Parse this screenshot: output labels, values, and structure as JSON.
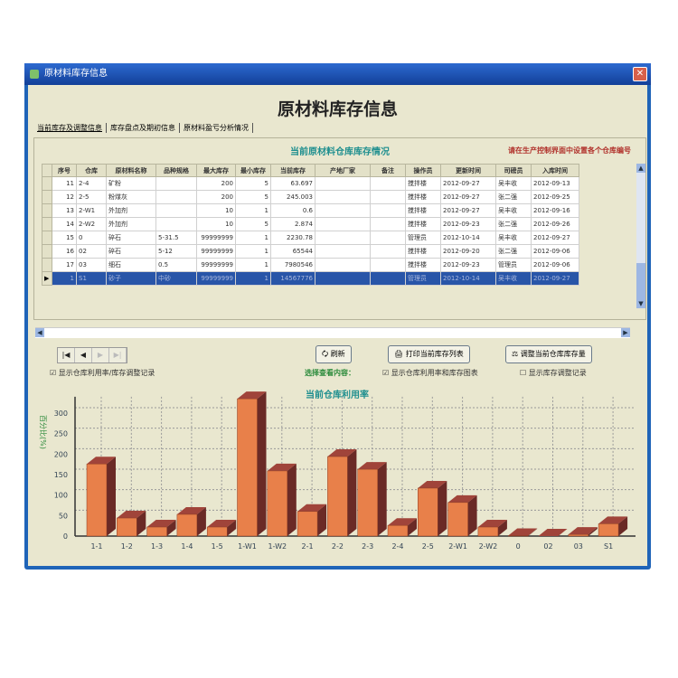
{
  "window": {
    "title": "原材料库存信息",
    "close": "✕"
  },
  "page": {
    "heading": "原材料库存信息"
  },
  "tabs": [
    {
      "label": "当前库存及调整信息",
      "active": true
    },
    {
      "label": "库存盘点及期初信息"
    },
    {
      "label": "原材料盈亏分析情况"
    }
  ],
  "grid": {
    "title": "当前原材料仓库库存情况",
    "note": "请在生产控制界面中设置各个仓库编号",
    "columns": [
      "序号",
      "仓库",
      "原材料名称",
      "品种规格",
      "最大库存",
      "最小库存",
      "当前库存",
      "产地厂家",
      "备注",
      "操作员",
      "更新时间",
      "司磅员",
      "入库时间"
    ],
    "rows": [
      [
        "11",
        "2-4",
        "矿粉",
        "",
        "200",
        "5",
        "63.697",
        "",
        "",
        "搅拌楼",
        "2012-09-27",
        "吴丰收",
        "2012-09-13"
      ],
      [
        "12",
        "2-5",
        "粉煤灰",
        "",
        "200",
        "5",
        "245.003",
        "",
        "",
        "搅拌楼",
        "2012-09-27",
        "张二强",
        "2012-09-25"
      ],
      [
        "13",
        "2-W1",
        "外加剂",
        "",
        "10",
        "1",
        "0.6",
        "",
        "",
        "搅拌楼",
        "2012-09-27",
        "吴丰收",
        "2012-09-16"
      ],
      [
        "14",
        "2-W2",
        "外加剂",
        "",
        "10",
        "5",
        "2.874",
        "",
        "",
        "搅拌楼",
        "2012-09-23",
        "张二强",
        "2012-09-26"
      ],
      [
        "15",
        "0",
        "碎石",
        "5-31.5",
        "99999999",
        "1",
        "2230.78",
        "",
        "",
        "管理员",
        "2012-10-14",
        "吴丰收",
        "2012-09-27"
      ],
      [
        "16",
        "02",
        "碎石",
        "5-12",
        "99999999",
        "1",
        "65544",
        "",
        "",
        "搅拌楼",
        "2012-09-20",
        "张二强",
        "2012-09-06"
      ],
      [
        "17",
        "03",
        "细石",
        "0.5",
        "99999999",
        "1",
        "7980546",
        "",
        "",
        "搅拌楼",
        "2012-09-23",
        "管理员",
        "2012-09-06"
      ],
      [
        "1",
        "S1",
        "砂子",
        "中砂",
        "99999999",
        "1",
        "14567776",
        "",
        "",
        "管理员",
        "2012-10-14",
        "吴丰收",
        "2012-09-27"
      ]
    ],
    "selected_row": 7
  },
  "nav": {
    "first": "|◀",
    "prev": "◀",
    "next": "▶",
    "last": "▶|"
  },
  "buttons": {
    "refresh": "刷新",
    "print": "打印当前库存列表",
    "adjust": "调整当前仓库库存量"
  },
  "options": {
    "show_records": "显示仓库利用率/库存调整记录",
    "show_records_checked": true,
    "choose_label": "选择查看内容：",
    "show_chart": "显示仓库利用率和库存图表",
    "show_chart_checked": true,
    "show_adjust": "显示库存调整记录",
    "show_adjust_checked": false
  },
  "chart_data": {
    "type": "bar",
    "title": "当前仓库利用率",
    "ylabel": "百分比(%)",
    "ylim": [
      0,
      350
    ],
    "yticks": [
      0,
      50,
      100,
      150,
      200,
      250,
      300
    ],
    "grid": true,
    "categories": [
      "1-1",
      "1-2",
      "1-3",
      "1-4",
      "1-5",
      "1-W1",
      "1-W2",
      "2-1",
      "2-2",
      "2-3",
      "2-4",
      "2-5",
      "2-W1",
      "2-W2",
      "0",
      "02",
      "03",
      "S1"
    ],
    "values": [
      176,
      44,
      22,
      53,
      22,
      335,
      159,
      60,
      194,
      163,
      26,
      117,
      82,
      22,
      1,
      0,
      4,
      30
    ],
    "colors": {
      "front": "#e8804a",
      "top": "#a0443a",
      "side": "#6a2a26"
    }
  }
}
